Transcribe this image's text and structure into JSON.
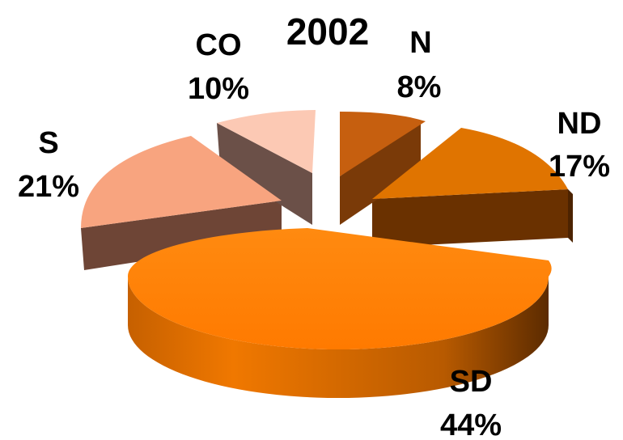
{
  "chart_data": {
    "type": "pie",
    "title": "2002",
    "slices": [
      {
        "label": "N",
        "value": 8,
        "value_label": "8%",
        "color": "#C65F0F",
        "side_color": "#7A3A08"
      },
      {
        "label": "ND",
        "value": 17,
        "value_label": "17%",
        "color": "#E07400",
        "side_color": "#6A3100"
      },
      {
        "label": "SD",
        "value": 44,
        "value_label": "44%",
        "color": "#FF8000",
        "side_color": "#B85A00"
      },
      {
        "label": "S",
        "value": 21,
        "value_label": "21%",
        "color": "#F8A47F",
        "side_color": "#6E4536"
      },
      {
        "label": "CO",
        "value": 10,
        "value_label": "10%",
        "color": "#FCC9B4",
        "side_color": "#6B5048"
      }
    ],
    "style": "3d-exploded"
  }
}
